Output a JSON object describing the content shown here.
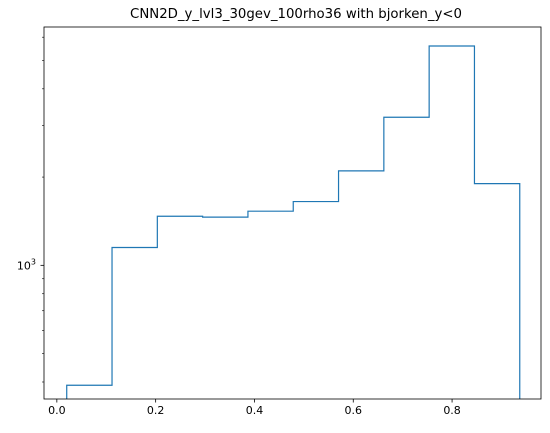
{
  "chart_data": {
    "type": "histogram",
    "title": "CNN2D_y_lvl3_30gev_100rho36 with bjorken_y<0",
    "xlabel": "",
    "ylabel": "",
    "y_scale": "log",
    "xlim": [
      -0.026,
      0.98
    ],
    "ylim": [
      350,
      6500
    ],
    "x_ticks": [
      0.0,
      0.2,
      0.4,
      0.6,
      0.8
    ],
    "x_tick_labels": [
      "0.0",
      "0.2",
      "0.4",
      "0.6",
      "0.8"
    ],
    "y_major_ticks": [
      1000
    ],
    "y_major_tick_labels": [
      "10^3"
    ],
    "y_minor_ticks": [
      400,
      500,
      600,
      700,
      800,
      900,
      2000,
      3000,
      4000,
      5000,
      6000
    ],
    "bin_edges": [
      0.02,
      0.1117,
      0.2034,
      0.2951,
      0.3868,
      0.4785,
      0.5702,
      0.6619,
      0.7536,
      0.8453,
      0.937
    ],
    "counts": [
      390,
      1150,
      1470,
      1460,
      1530,
      1650,
      2100,
      3200,
      5600,
      1900
    ],
    "series": [
      {
        "color": "#1f77b4"
      }
    ],
    "grid": false,
    "legend": false
  }
}
